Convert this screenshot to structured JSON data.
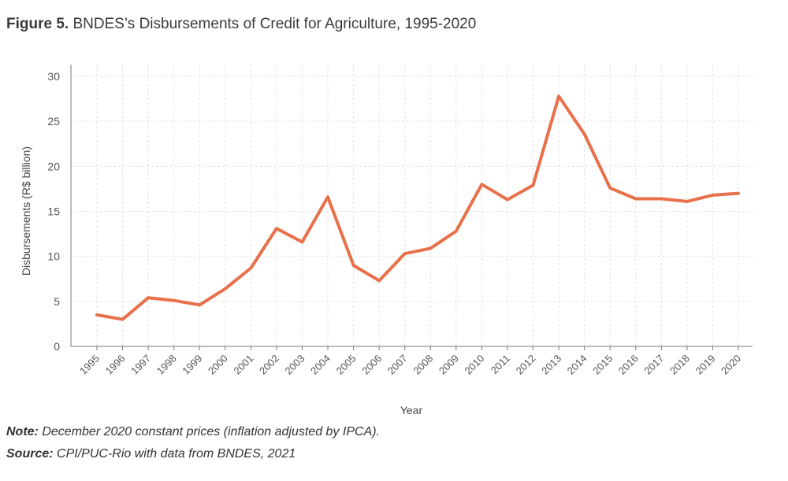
{
  "title": {
    "prefix": "Figure 5.",
    "text": "BNDES’s Disbursements of Credit for Agriculture, 1995-2020"
  },
  "footer": {
    "note_label": "Note:",
    "note_text": "December 2020 constant prices (inflation adjusted by IPCA).",
    "source_label": "Source:",
    "source_text": "CPI/PUC-Rio with data from BNDES, 2021"
  },
  "chart_data": {
    "type": "line",
    "xlabel": "Year",
    "ylabel": "Disbursements (R$ billion)",
    "ylim": [
      0,
      30
    ],
    "yticks": [
      0,
      5,
      10,
      15,
      20,
      25,
      30
    ],
    "grid": true,
    "line_color": "#e8704a",
    "categories": [
      "1995",
      "1996",
      "1997",
      "1998",
      "1999",
      "2000",
      "2001",
      "2002",
      "2003",
      "2004",
      "2005",
      "2006",
      "2007",
      "2008",
      "2009",
      "2010",
      "2011",
      "2012",
      "2013",
      "2014",
      "2015",
      "2016",
      "2017",
      "2018",
      "2019",
      "2020"
    ],
    "values": [
      3.5,
      3.0,
      5.4,
      5.1,
      4.6,
      6.4,
      8.7,
      13.1,
      11.6,
      16.6,
      9.0,
      7.3,
      10.3,
      10.9,
      12.8,
      18.0,
      16.3,
      17.9,
      27.8,
      23.6,
      17.6,
      16.4,
      16.4,
      16.1,
      16.8,
      17.0
    ]
  }
}
